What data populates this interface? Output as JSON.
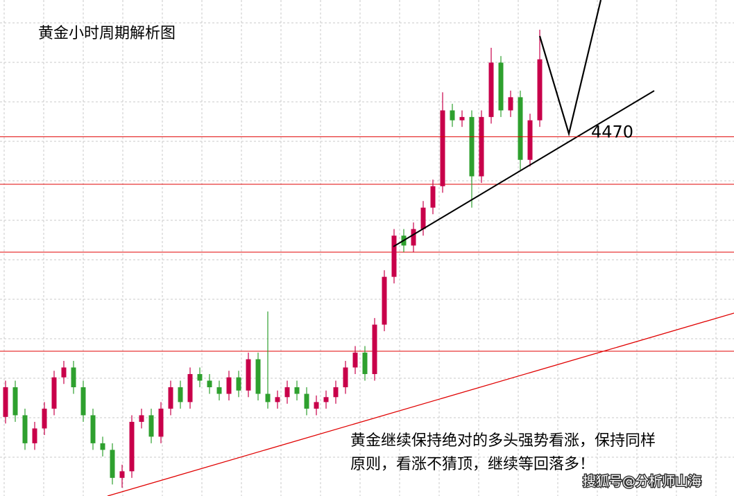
{
  "chart_data": {
    "type": "candlestick",
    "title": "黄金小时周期解析图",
    "ylim": [
      4252,
      4553
    ],
    "grid": true,
    "up_color": "#c8004a",
    "down_color": "#2ea02e",
    "open": [
      4300,
      4318,
      4301,
      4284,
      4293,
      4305,
      4324,
      4330,
      4318,
      4301,
      4284,
      4280,
      4263,
      4267,
      4297,
      4301,
      4288,
      4305,
      4318,
      4309,
      4326,
      4322,
      4318,
      4314,
      4324,
      4316,
      4335,
      4314,
      4309,
      4312,
      4318,
      4314,
      4305,
      4309,
      4312,
      4318,
      4330,
      4339,
      4326,
      4356,
      4385,
      4410,
      4404,
      4414,
      4427,
      4440,
      4486,
      4480,
      4482,
      4446,
      4482,
      4515,
      4486,
      4494,
      4456,
      4480
    ],
    "high": [
      4322,
      4322,
      4305,
      4297,
      4309,
      4328,
      4334,
      4334,
      4322,
      4305,
      4288,
      4284,
      4271,
      4301,
      4305,
      4305,
      4309,
      4322,
      4322,
      4330,
      4330,
      4326,
      4322,
      4328,
      4328,
      4339,
      4339,
      4364,
      4316,
      4322,
      4322,
      4318,
      4313,
      4316,
      4322,
      4334,
      4343,
      4343,
      4360,
      4389,
      4414,
      4414,
      4418,
      4431,
      4444,
      4497,
      4490,
      4486,
      4486,
      4486,
      4524,
      4519,
      4498,
      4498,
      4484,
      4535
    ],
    "low": [
      4296,
      4297,
      4280,
      4280,
      4289,
      4301,
      4320,
      4314,
      4297,
      4280,
      4276,
      4259,
      4257,
      4263,
      4293,
      4284,
      4284,
      4301,
      4305,
      4305,
      4318,
      4314,
      4310,
      4310,
      4312,
      4312,
      4310,
      4305,
      4305,
      4308,
      4310,
      4301,
      4301,
      4305,
      4308,
      4314,
      4326,
      4322,
      4322,
      4352,
      4381,
      4400,
      4400,
      4410,
      4423,
      4436,
      4476,
      4476,
      4427,
      4442,
      4478,
      4482,
      4482,
      4450,
      4452,
      4476
    ],
    "close": [
      4318,
      4301,
      4284,
      4293,
      4305,
      4324,
      4330,
      4318,
      4301,
      4284,
      4280,
      4263,
      4267,
      4297,
      4301,
      4288,
      4305,
      4318,
      4309,
      4326,
      4322,
      4318,
      4314,
      4324,
      4316,
      4335,
      4314,
      4309,
      4312,
      4318,
      4314,
      4305,
      4309,
      4312,
      4318,
      4330,
      4339,
      4326,
      4356,
      4385,
      4410,
      4404,
      4414,
      4427,
      4440,
      4486,
      4480,
      4482,
      4446,
      4482,
      4515,
      4486,
      4494,
      4456,
      4480,
      4517
    ],
    "levels": [
      4470
    ],
    "level_color": "#e00000",
    "annotation": [
      "黄金继续保持绝对的多头强势看涨，保持同样",
      "原则，看涨不猜顶，继续等回落多！"
    ],
    "watermark": "搜狐号@分析师山海"
  }
}
